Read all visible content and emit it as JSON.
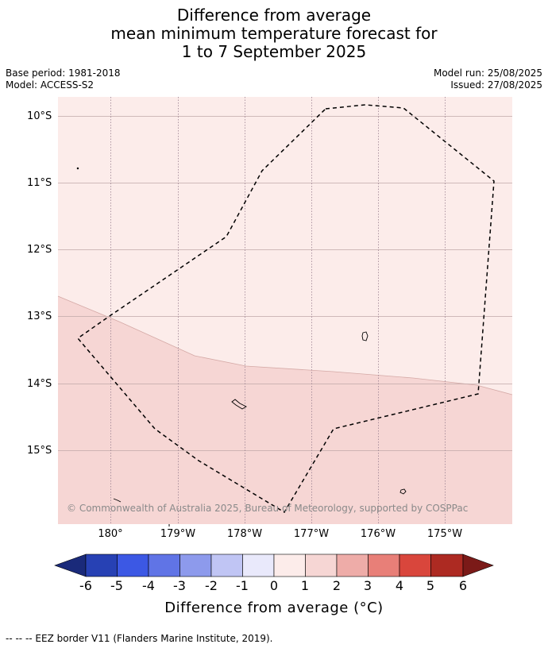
{
  "title": {
    "line1": "Difference from average",
    "line2": "mean minimum temperature forecast for",
    "line3": "1 to 7 September 2025"
  },
  "meta": {
    "base_period": "Base period: 1981-2018",
    "model": "Model: ACCESS-S2",
    "model_run": "Model run: 25/08/2025",
    "issued": "Issued: 27/08/2025"
  },
  "map": {
    "lat_labels": [
      "10°S",
      "11°S",
      "12°S",
      "13°S",
      "14°S",
      "15°S"
    ],
    "lon_labels": [
      "180°",
      "179°W",
      "178°W",
      "177°W",
      "176°W",
      "175°W"
    ],
    "copyright": "© Commonwealth of Australia 2025, Bureau of Meteorology, supported by COSPPac",
    "colors": {
      "zone_0_to_1": "#fcecea",
      "zone_1_to_2": "#f6d6d4"
    }
  },
  "colorbar": {
    "ticks": [
      "-6",
      "-5",
      "-4",
      "-3",
      "-2",
      "-1",
      "0",
      "1",
      "2",
      "3",
      "4",
      "5",
      "6"
    ],
    "colors": [
      "#1a2a7a",
      "#2741b4",
      "#3c58e4",
      "#6074e6",
      "#8d9aec",
      "#c0c5f4",
      "#e9e9fb",
      "#fcecea",
      "#f6d6d4",
      "#eeaca8",
      "#e87f78",
      "#d9463c",
      "#ad2a22",
      "#7b1a18"
    ],
    "label": "Difference from average (°C)"
  },
  "footnote": "-- -- -- EEZ border V11 (Flanders Marine Institute, 2019)."
}
